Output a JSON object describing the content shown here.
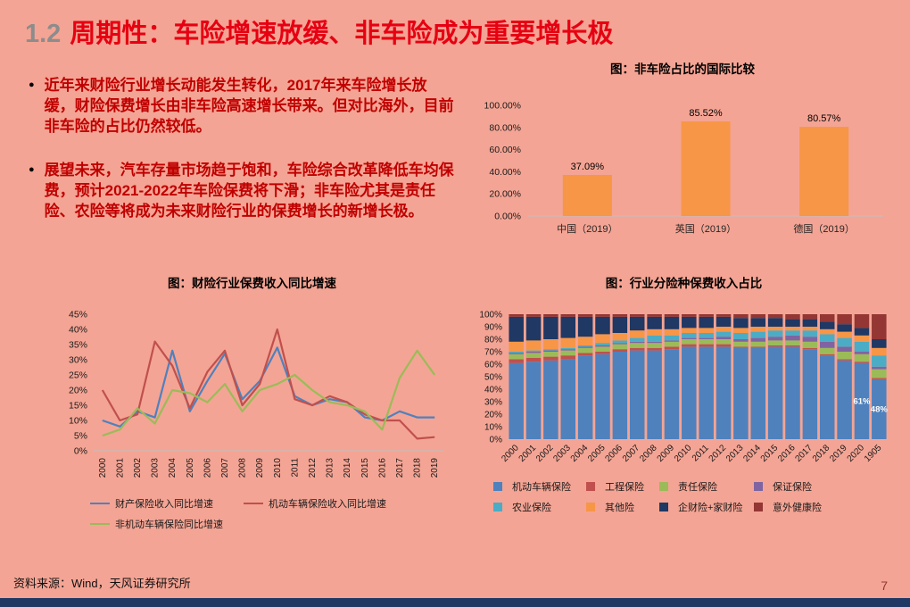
{
  "page": {
    "title_prefix": "1.2",
    "title": "周期性：车险增速放缓、非车险成为重要增长极",
    "bullet_icon": "●",
    "footer_source": "资料来源：Wind，天风证券研究所",
    "page_number": "7",
    "colors": {
      "background": "#F4A494",
      "title_red": "#E60012",
      "body_text_red": "#C00000",
      "bar_orange": "#F79646",
      "bottom_bar_navy": "#1F3864",
      "page_number_maroon": "#943634"
    }
  },
  "bullets": [
    "近年来财险行业增长动能发生转化，2017年来车险增长放缓，财险保费增长由非车险高速增长带来。但对比海外，目前非车险的占比仍然较低。",
    "展望未来，汽车存量市场趋于饱和，车险综合改革降低车均保费，预计2021-2022年车险保费将下滑；非车险尤其是责任险、农险等将成为未来财险行业的保费增长的新增长极。"
  ],
  "chart_data": [
    {
      "type": "bar",
      "title": "图：非车险占比的国际比较",
      "categories": [
        "中国（2019）",
        "英国（2019）",
        "德国（2019）"
      ],
      "values": [
        37.09,
        85.52,
        80.57
      ],
      "data_labels": [
        "37.09%",
        "85.52%",
        "80.57%"
      ],
      "xlabel": "",
      "ylabel": "",
      "ylim": [
        0,
        100
      ],
      "ytick_step": 20,
      "ytick_labels": [
        "0.00%",
        "20.00%",
        "40.00%",
        "60.00%",
        "80.00%",
        "100.00%"
      ],
      "grid": false,
      "legend": "none",
      "bar_color": "#F79646"
    },
    {
      "type": "line",
      "title": "图：财险行业保费收入同比增速",
      "x": [
        "2000",
        "2001",
        "2002",
        "2003",
        "2004",
        "2005",
        "2006",
        "2007",
        "2008",
        "2009",
        "2010",
        "2011",
        "2012",
        "2013",
        "2014",
        "2015",
        "2016",
        "2017",
        "2018",
        "2019"
      ],
      "series": [
        {
          "name": "财产保险收入同比增速",
          "color": "#4F81BD",
          "values": [
            10,
            8,
            13,
            11,
            33,
            13,
            23,
            32,
            17,
            23,
            34,
            18,
            15,
            17,
            16,
            11,
            10,
            13,
            11,
            11
          ]
        },
        {
          "name": "机动车辆保险收入同比增速",
          "color": "#C0504D",
          "values": [
            20,
            10,
            12,
            36,
            28,
            14,
            26,
            33,
            15,
            22,
            40,
            17,
            15,
            18,
            16,
            12,
            10,
            10,
            4,
            4.5
          ]
        },
        {
          "name": "非机动车辆保险同比增速",
          "color": "#9BBB59",
          "values": [
            5,
            7,
            14,
            9,
            20,
            19,
            16,
            22,
            13,
            20,
            22,
            25,
            20,
            16,
            15,
            13,
            7,
            24,
            33,
            25
          ]
        }
      ],
      "xlabel": "",
      "ylabel": "",
      "ylim": [
        0,
        45
      ],
      "ytick_step": 5,
      "grid": false,
      "legend_position": "bottom"
    },
    {
      "type": "bar",
      "subtype": "stacked_percent",
      "title": "图：行业分险种保费收入占比",
      "categories": [
        "2000",
        "2001",
        "2002",
        "2003",
        "2004",
        "2005",
        "2006",
        "2007",
        "2008",
        "2009",
        "2010",
        "2011",
        "2012",
        "2013",
        "2014",
        "2015",
        "2016",
        "2017",
        "2018",
        "2019",
        "2020",
        "1905"
      ],
      "series": [
        {
          "name": "机动车辆保险",
          "color": "#4F81BD",
          "values": [
            61,
            62,
            63,
            64,
            67,
            68,
            70,
            71,
            71,
            72,
            74,
            74,
            74,
            73,
            73,
            74,
            74,
            72,
            67,
            63,
            61,
            48
          ]
        },
        {
          "name": "工程保险",
          "color": "#C0504D",
          "values": [
            3,
            3,
            3,
            3,
            2,
            2,
            2,
            2,
            2,
            2,
            2,
            2,
            2,
            1,
            1,
            1,
            1,
            1,
            1,
            1,
            1,
            1
          ]
        },
        {
          "name": "责任保险",
          "color": "#9BBB59",
          "values": [
            4,
            4,
            4,
            4,
            4,
            4,
            4,
            4,
            4,
            4,
            4,
            4,
            4,
            4,
            4,
            4,
            4,
            5,
            5,
            6,
            6,
            7
          ]
        },
        {
          "name": "保证保险",
          "color": "#8064A2",
          "values": [
            1,
            1,
            1,
            1,
            1,
            1,
            1,
            1,
            1,
            1,
            1,
            1,
            2,
            2,
            3,
            3,
            4,
            4,
            5,
            4,
            2,
            2
          ]
        },
        {
          "name": "农业保险",
          "color": "#4BACC6",
          "values": [
            1,
            1,
            1,
            1,
            1,
            2,
            2,
            3,
            5,
            4,
            4,
            4,
            4,
            5,
            5,
            5,
            4,
            5,
            6,
            7,
            8,
            9
          ]
        },
        {
          "name": "其他险",
          "color": "#F79646",
          "values": [
            8,
            8,
            8,
            8,
            7,
            7,
            6,
            6,
            5,
            5,
            4,
            4,
            4,
            4,
            4,
            3,
            3,
            3,
            4,
            5,
            5,
            6
          ]
        },
        {
          "name": "企财险+家财险",
          "color": "#1F3864",
          "values": [
            20,
            19,
            18,
            17,
            16,
            14,
            13,
            11,
            10,
            10,
            9,
            9,
            8,
            8,
            7,
            7,
            6,
            6,
            6,
            6,
            6,
            7
          ]
        },
        {
          "name": "意外健康险",
          "color": "#943634",
          "values": [
            2,
            2,
            2,
            2,
            2,
            2,
            2,
            2,
            2,
            2,
            2,
            2,
            2,
            3,
            3,
            3,
            4,
            4,
            6,
            8,
            11,
            20
          ]
        }
      ],
      "annotations": [
        {
          "category": "2020",
          "series": "机动车辆保险",
          "text": "61%"
        },
        {
          "category": "1905",
          "series": "机动车辆保险",
          "text": "48%"
        }
      ],
      "xlabel": "",
      "ylabel": "",
      "ylim": [
        0,
        100
      ],
      "ytick_step": 10,
      "grid": false,
      "legend_position": "bottom"
    }
  ]
}
